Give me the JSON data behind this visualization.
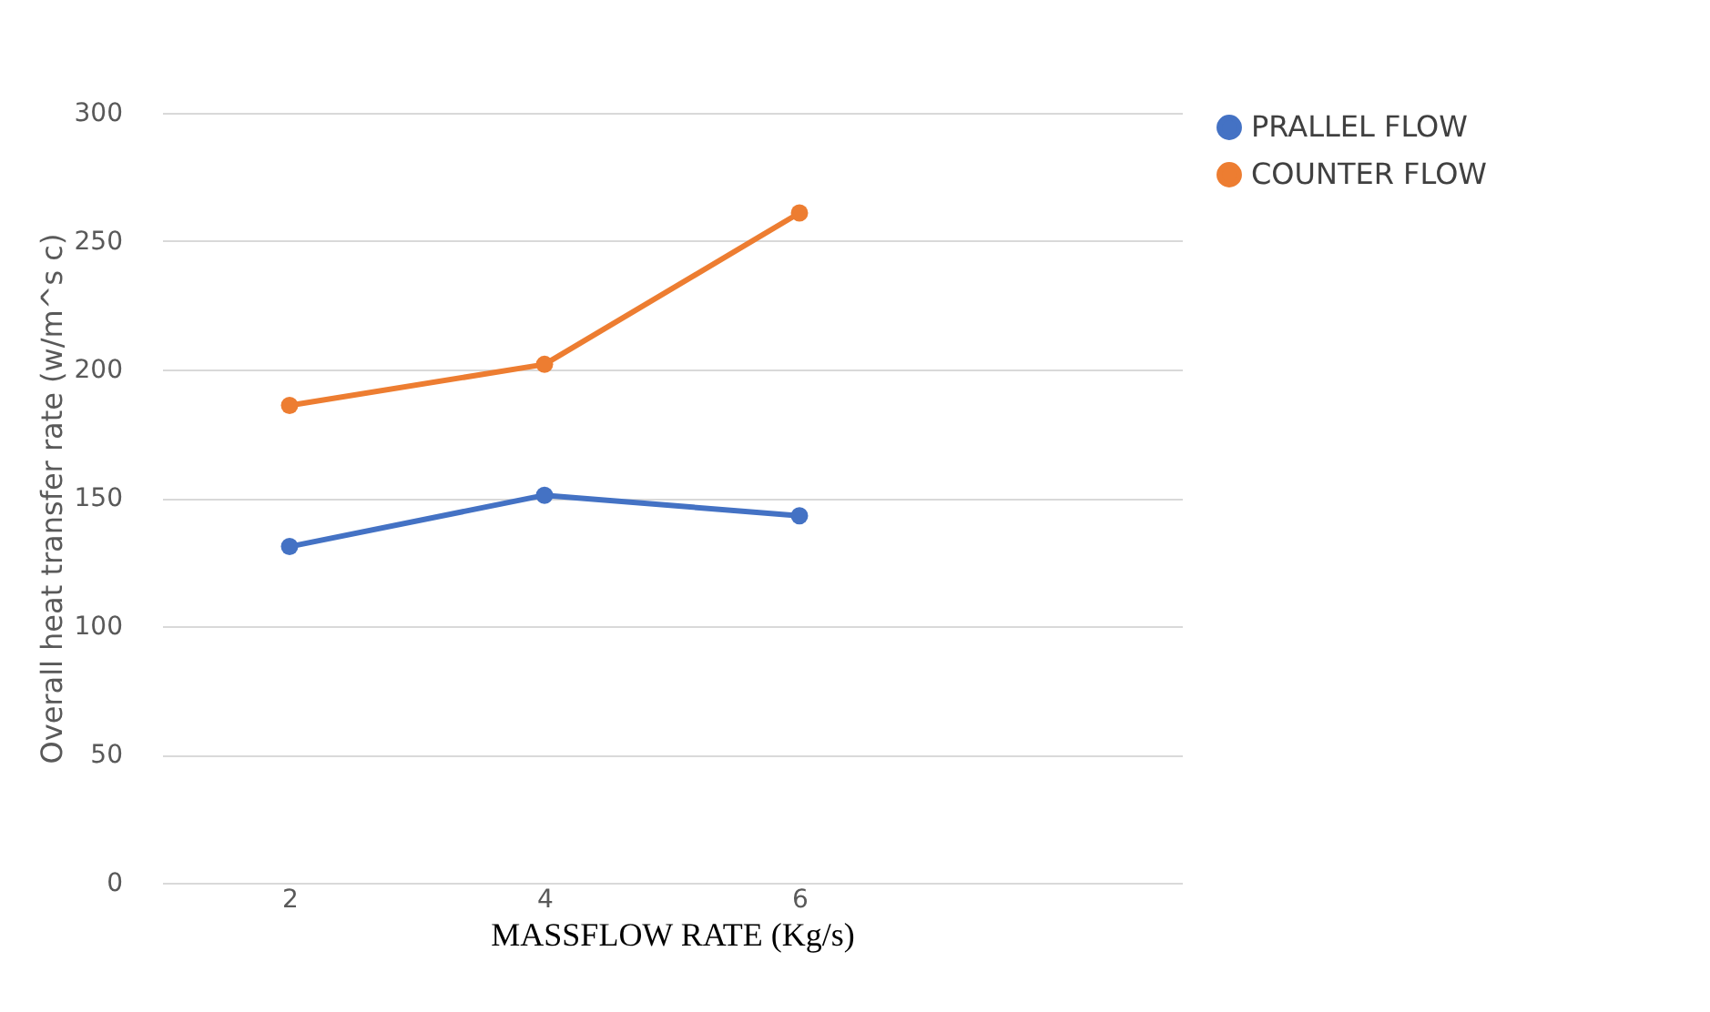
{
  "chart_data": {
    "type": "line",
    "xlabel": "MASSFLOW RATE (Kg/s)",
    "ylabel": "Overall heat transfer rate (w/m^s c)",
    "categories": [
      "2",
      "4",
      "6",
      null
    ],
    "series": [
      {
        "name": "PRALLEL FLOW",
        "color": "#4472c4",
        "values": [
          131,
          151,
          143,
          null
        ]
      },
      {
        "name": "COUNTER FLOW",
        "color": "#ed7d31",
        "values": [
          186,
          202,
          261,
          null
        ]
      }
    ],
    "ylim": [
      0,
      300
    ],
    "yticks": [
      0,
      50,
      100,
      150,
      200,
      250,
      300
    ],
    "grid": "y",
    "legend": "right",
    "marker": "circle",
    "line_style": "solid"
  }
}
